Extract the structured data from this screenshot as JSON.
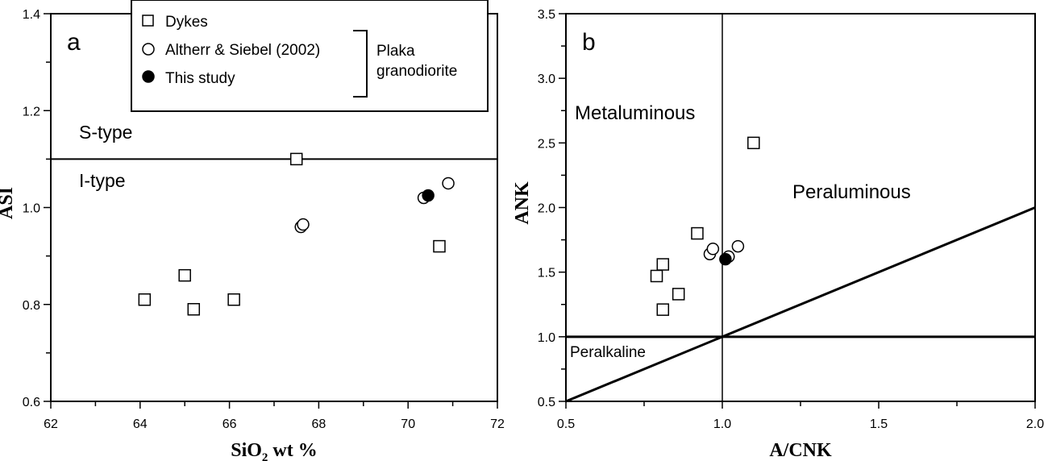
{
  "chart_data": [
    {
      "type": "scatter",
      "panel_label": "a",
      "xlabel_main": "SiO",
      "xlabel_sub": "2",
      "xlabel_rest": " wt %",
      "ylabel": "ASI",
      "xlim": [
        62,
        72
      ],
      "ylim": [
        0.6,
        1.4
      ],
      "xticks": [
        "62",
        "64",
        "66",
        "68",
        "70",
        "72"
      ],
      "yticks": [
        "0.6",
        "0.8",
        "1.0",
        "1.2",
        "1.4"
      ],
      "divider": {
        "y": 1.1,
        "label_above": "S-type",
        "label_below": "I-type"
      },
      "legend": {
        "items": [
          "Dykes",
          "Altherr & Siebel (2002)",
          "This study"
        ],
        "bracket_label_1": "Plaka",
        "bracket_label_2": "granodiorite"
      },
      "series": [
        {
          "name": "Dykes",
          "marker": "square",
          "points": [
            [
              64.1,
              0.81
            ],
            [
              65.0,
              0.86
            ],
            [
              65.2,
              0.79
            ],
            [
              66.1,
              0.81
            ],
            [
              67.5,
              1.1
            ],
            [
              70.7,
              0.92
            ]
          ]
        },
        {
          "name": "Altherr & Siebel (2002)",
          "marker": "open-circle",
          "points": [
            [
              67.6,
              0.96
            ],
            [
              67.65,
              0.965
            ],
            [
              70.35,
              1.02
            ],
            [
              70.9,
              1.05
            ]
          ]
        },
        {
          "name": "This study",
          "marker": "filled-circle",
          "points": [
            [
              70.45,
              1.025
            ]
          ]
        }
      ]
    },
    {
      "type": "scatter",
      "panel_label": "b",
      "xlabel": "A/CNK",
      "ylabel": "ANK",
      "xlim": [
        0.5,
        2.0
      ],
      "ylim": [
        0.5,
        3.5
      ],
      "xticks": [
        "0.5",
        "1.0",
        "1.5",
        "2.0"
      ],
      "yticks": [
        "0.5",
        "1.0",
        "1.5",
        "2.0",
        "2.5",
        "3.0",
        "3.5"
      ],
      "regions": {
        "metaluminous": "Metaluminous",
        "peraluminous": "Peraluminous",
        "peralkaline": "Peralkaline"
      },
      "series": [
        {
          "name": "Dykes",
          "marker": "square",
          "points": [
            [
              0.79,
              1.47
            ],
            [
              0.81,
              1.56
            ],
            [
              0.81,
              1.21
            ],
            [
              0.86,
              1.33
            ],
            [
              0.92,
              1.8
            ],
            [
              1.1,
              2.5
            ]
          ]
        },
        {
          "name": "Altherr & Siebel (2002)",
          "marker": "open-circle",
          "points": [
            [
              0.96,
              1.64
            ],
            [
              0.97,
              1.68
            ],
            [
              1.02,
              1.62
            ],
            [
              1.05,
              1.7
            ]
          ]
        },
        {
          "name": "This study",
          "marker": "filled-circle",
          "points": [
            [
              1.01,
              1.6
            ]
          ]
        }
      ]
    }
  ]
}
